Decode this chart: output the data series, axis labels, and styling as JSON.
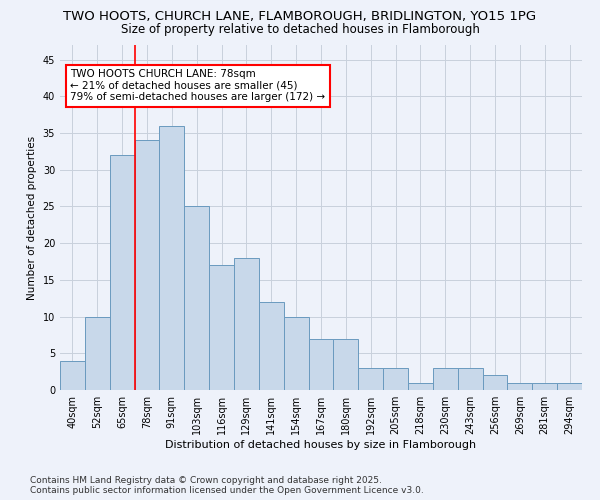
{
  "title_line1": "TWO HOOTS, CHURCH LANE, FLAMBOROUGH, BRIDLINGTON, YO15 1PG",
  "title_line2": "Size of property relative to detached houses in Flamborough",
  "xlabel": "Distribution of detached houses by size in Flamborough",
  "ylabel": "Number of detached properties",
  "categories": [
    "40sqm",
    "52sqm",
    "65sqm",
    "78sqm",
    "91sqm",
    "103sqm",
    "116sqm",
    "129sqm",
    "141sqm",
    "154sqm",
    "167sqm",
    "180sqm",
    "192sqm",
    "205sqm",
    "218sqm",
    "230sqm",
    "243sqm",
    "256sqm",
    "269sqm",
    "281sqm",
    "294sqm"
  ],
  "values": [
    4,
    10,
    32,
    34,
    36,
    25,
    17,
    18,
    12,
    10,
    7,
    7,
    3,
    3,
    1,
    3,
    3,
    2,
    1,
    1,
    1
  ],
  "bar_color": "#c8d8ea",
  "bar_edge_color": "#6a9abf",
  "red_line_index": 3,
  "annotation_text": "TWO HOOTS CHURCH LANE: 78sqm\n← 21% of detached houses are smaller (45)\n79% of semi-detached houses are larger (172) →",
  "annotation_box_facecolor": "white",
  "annotation_box_edgecolor": "red",
  "ylim": [
    0,
    47
  ],
  "yticks": [
    0,
    5,
    10,
    15,
    20,
    25,
    30,
    35,
    40,
    45
  ],
  "grid_color": "#c8d0dc",
  "background_color": "#eef2fa",
  "footer_text": "Contains HM Land Registry data © Crown copyright and database right 2025.\nContains public sector information licensed under the Open Government Licence v3.0.",
  "title_fontsize": 9.5,
  "subtitle_fontsize": 8.5,
  "xlabel_fontsize": 8,
  "ylabel_fontsize": 7.5,
  "tick_fontsize": 7,
  "annotation_fontsize": 7.5,
  "footer_fontsize": 6.5
}
